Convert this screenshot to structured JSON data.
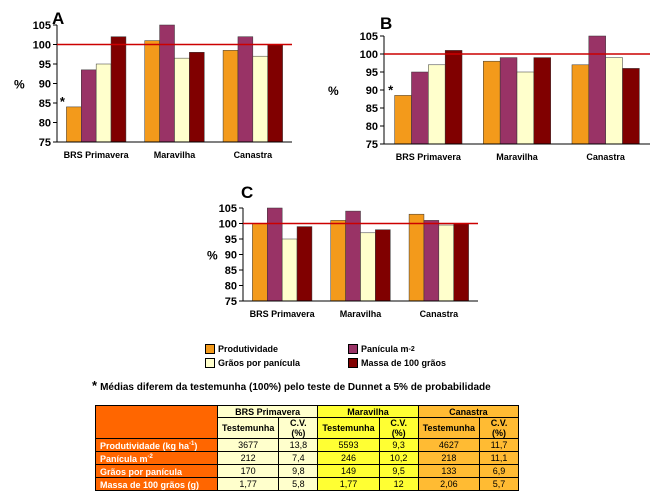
{
  "colors": {
    "produtividade": "#f39a1b",
    "panicula": "#993366",
    "graos": "#ffffcc",
    "massa": "#800000",
    "reference_line": "#cc0000"
  },
  "chart_data": [
    {
      "type": "bar",
      "panel_label": "A",
      "ylabel": "%",
      "ylim": [
        75,
        105
      ],
      "yticks": [
        75,
        80,
        85,
        90,
        95,
        100,
        105
      ],
      "reference_value": 100,
      "categories": [
        "BRS Primavera",
        "Maravilha",
        "Canastra"
      ],
      "series": [
        {
          "name": "Produtividade",
          "values": [
            84,
            101,
            98.5
          ]
        },
        {
          "name": "Panícula m-2",
          "values": [
            93.5,
            105,
            102
          ]
        },
        {
          "name": "Grãos por panícula",
          "values": [
            95,
            96.5,
            97
          ]
        },
        {
          "name": "Massa de 100 grãos",
          "values": [
            102,
            98,
            100
          ]
        }
      ],
      "annotations": [
        {
          "text": "*",
          "category": 0,
          "series": 0
        }
      ]
    },
    {
      "type": "bar",
      "panel_label": "B",
      "ylabel": "%",
      "ylim": [
        75,
        105
      ],
      "yticks": [
        75,
        80,
        85,
        90,
        95,
        100,
        105
      ],
      "reference_value": 100,
      "categories": [
        "BRS Primavera",
        "Maravilha",
        "Canastra"
      ],
      "series": [
        {
          "name": "Produtividade",
          "values": [
            88.5,
            98,
            97
          ]
        },
        {
          "name": "Panícula m-2",
          "values": [
            95,
            99,
            105
          ]
        },
        {
          "name": "Grãos por panícula",
          "values": [
            97,
            95,
            99
          ]
        },
        {
          "name": "Massa de 100 grãos",
          "values": [
            101,
            99,
            96
          ]
        }
      ],
      "annotations": [
        {
          "text": "*",
          "category": 0,
          "series": 0
        }
      ]
    },
    {
      "type": "bar",
      "panel_label": "C",
      "ylabel": "%",
      "ylim": [
        75,
        105
      ],
      "yticks": [
        75,
        80,
        85,
        90,
        95,
        100,
        105
      ],
      "reference_value": 100,
      "categories": [
        "BRS Primavera",
        "Maravilha",
        "Canastra"
      ],
      "series": [
        {
          "name": "Produtividade",
          "values": [
            100,
            101,
            103
          ]
        },
        {
          "name": "Panícula m-2",
          "values": [
            105.5,
            104,
            101
          ]
        },
        {
          "name": "Grãos por panícula",
          "values": [
            95,
            97,
            99.5
          ]
        },
        {
          "name": "Massa de 100 grãos",
          "values": [
            99,
            98,
            100
          ]
        }
      ],
      "annotations": []
    }
  ],
  "legend": [
    {
      "label": "Produtividade",
      "color": "#f39a1b"
    },
    {
      "label": "Panícula m",
      "sup": "-2",
      "color": "#993366"
    },
    {
      "label": "Grãos por panícula",
      "color": "#ffffcc"
    },
    {
      "label": "Massa de 100 grãos",
      "color": "#800000"
    }
  ],
  "footnote": {
    "star": "*",
    "text": "Médias diferem da testemunha (100%) pelo teste de Dunnet a 5% de probabilidade"
  },
  "table": {
    "groups": [
      "BRS Primavera",
      "Maravilha",
      "Canastra"
    ],
    "subheaders": [
      "Testemunha",
      "C.V.(%)"
    ],
    "rows": [
      {
        "label": "Produtividade (kg ha",
        "sup": "-1",
        "label_end": ")",
        "values": [
          "3677",
          "13,8",
          "5593",
          "9,3",
          "4627",
          "11,7"
        ]
      },
      {
        "label": "Panícula m",
        "sup": "-2",
        "label_end": "",
        "values": [
          "212",
          "7,4",
          "246",
          "10,2",
          "218",
          "11,1"
        ]
      },
      {
        "label": "Grãos por panícula",
        "sup": "",
        "label_end": "",
        "values": [
          "170",
          "9,8",
          "149",
          "9,5",
          "133",
          "6,9"
        ]
      },
      {
        "label": "Massa de 100 grãos (g)",
        "sup": "",
        "label_end": "",
        "values": [
          "1,77",
          "5,8",
          "1,77",
          "12",
          "2,06",
          "5,7"
        ]
      }
    ]
  }
}
